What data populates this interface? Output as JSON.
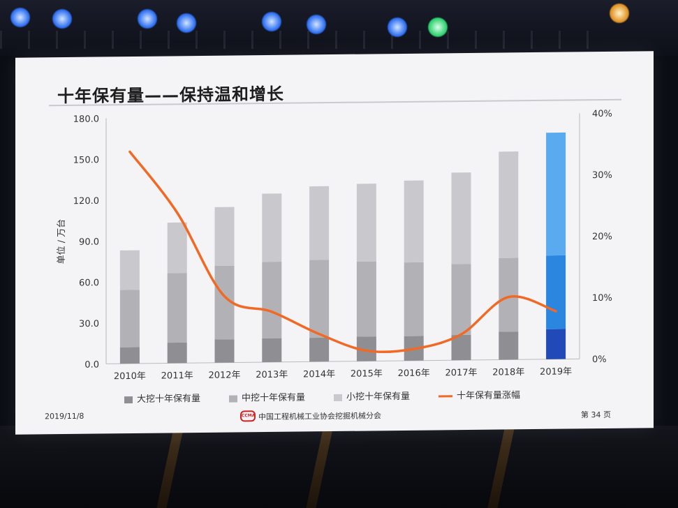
{
  "slide": {
    "title": "十年保有量——保持温和增长",
    "date": "2019/11/8",
    "org": "中国工程机械工业协会挖掘机械分会",
    "logo_text": "CCMA",
    "page": "第 34 页"
  },
  "colors": {
    "large": "#8e8e93",
    "medium": "#b2b2b6",
    "small": "#c9c9cd",
    "line": "#f06a25",
    "large_2019": "#2149b8",
    "medium_2019": "#2b86e0",
    "small_2019": "#5aaaf0"
  },
  "chart_data": {
    "type": "bar",
    "categories": [
      "2010年",
      "2011年",
      "2012年",
      "2013年",
      "2014年",
      "2015年",
      "2016年",
      "2017年",
      "2018年",
      "2019年"
    ],
    "series": [
      {
        "name": "大挖十年保有量",
        "values": [
          12,
          15,
          17,
          17.5,
          17.5,
          18,
          18,
          18.5,
          20.5,
          22
        ]
      },
      {
        "name": "中挖十年保有量",
        "values": [
          42,
          51,
          54,
          56,
          57,
          55,
          54,
          52,
          54,
          54
        ]
      },
      {
        "name": "小挖十年保有量",
        "values": [
          29,
          37,
          43,
          50,
          54,
          57,
          60,
          67,
          78,
          90
        ]
      },
      {
        "name": "十年保有量涨幅",
        "type": "line",
        "axis": "right",
        "values": [
          34.5,
          24.5,
          10.8,
          8.2,
          4.5,
          1.7,
          1.9,
          4.2,
          10.2,
          7.8
        ]
      }
    ],
    "y_left": {
      "ylabel": "单位 / 万台",
      "ticks": [
        "180.0",
        "150.0",
        "120.0",
        "90.0",
        "60.0",
        "30.0",
        "0.0"
      ],
      "ylim": [
        0,
        180
      ]
    },
    "y_right": {
      "ticks": [
        "40%",
        "30%",
        "20%",
        "10%",
        "0%"
      ],
      "ylim": [
        0,
        40
      ]
    },
    "stacked": true,
    "legend_position": "bottom"
  }
}
